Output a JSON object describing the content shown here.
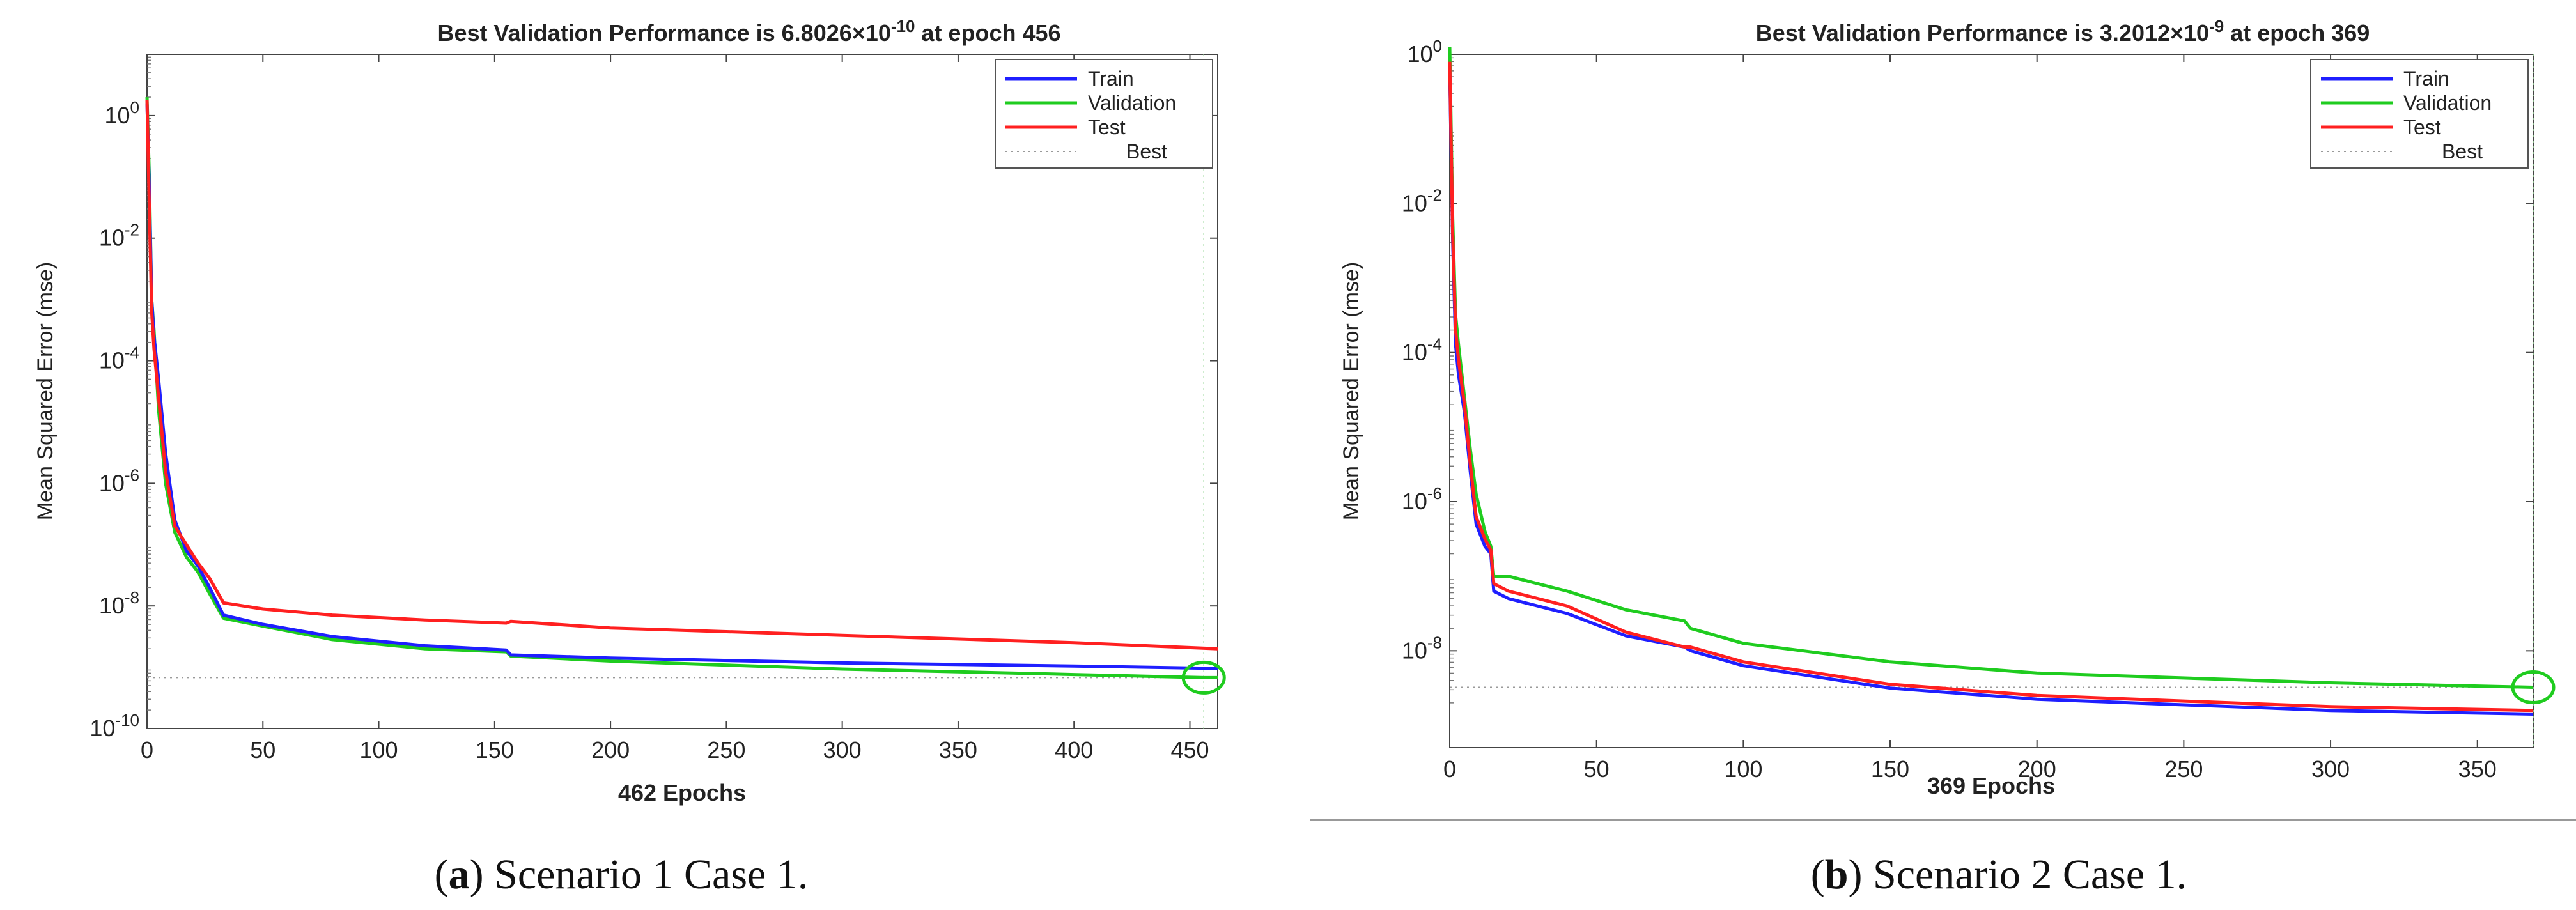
{
  "chart_data": [
    {
      "type": "line",
      "title_prefix": "Best Validation Performance is 6.8026×10",
      "title_exp": "-10",
      "title_suffix": " at epoch 456",
      "xlabel": "462 Epochs",
      "ylabel": "Mean Squared Error  (mse)",
      "yscale": "log",
      "xlim": [
        0,
        462
      ],
      "ylim_exp": [
        -10,
        1
      ],
      "xticks": [
        0,
        50,
        100,
        150,
        200,
        250,
        300,
        350,
        400,
        450
      ],
      "yticks": [
        {
          "base": "10",
          "exp": "0",
          "value": 0
        },
        {
          "base": "10",
          "exp": "-2",
          "value": -2
        },
        {
          "base": "10",
          "exp": "-4",
          "value": -4
        },
        {
          "base": "10",
          "exp": "-6",
          "value": -6
        },
        {
          "base": "10",
          "exp": "-8",
          "value": -8
        },
        {
          "base": "10",
          "exp": "-10",
          "value": -10
        }
      ],
      "series": [
        {
          "name": "Train",
          "color": "#1f1fff",
          "x": [
            0,
            1,
            2,
            3,
            5,
            8,
            12,
            17,
            22,
            27,
            33,
            50,
            80,
            120,
            155,
            157,
            200,
            300,
            400,
            462
          ],
          "log10_mse": [
            0.2,
            -1.2,
            -3.0,
            -3.6,
            -4.3,
            -5.5,
            -6.6,
            -7.1,
            -7.35,
            -7.7,
            -8.15,
            -8.3,
            -8.5,
            -8.65,
            -8.72,
            -8.8,
            -8.85,
            -8.93,
            -8.98,
            -9.02
          ]
        },
        {
          "name": "Validation",
          "color": "#1fcc1f",
          "x": [
            0,
            1,
            2,
            3,
            5,
            8,
            12,
            17,
            22,
            27,
            33,
            50,
            80,
            120,
            155,
            157,
            200,
            300,
            400,
            456,
            462
          ],
          "log10_mse": [
            0.3,
            -1.0,
            -3.0,
            -3.5,
            -4.8,
            -6.0,
            -6.8,
            -7.2,
            -7.45,
            -7.8,
            -8.2,
            -8.33,
            -8.55,
            -8.7,
            -8.75,
            -8.82,
            -8.9,
            -9.03,
            -9.12,
            -9.17,
            -9.17
          ]
        },
        {
          "name": "Test",
          "color": "#ff2020",
          "x": [
            0,
            1,
            2,
            3,
            5,
            8,
            12,
            17,
            22,
            27,
            33,
            50,
            80,
            120,
            155,
            157,
            200,
            300,
            400,
            462
          ],
          "log10_mse": [
            0.25,
            -1.5,
            -3.2,
            -3.8,
            -4.6,
            -5.8,
            -6.7,
            -7.0,
            -7.3,
            -7.55,
            -7.95,
            -8.05,
            -8.15,
            -8.23,
            -8.28,
            -8.25,
            -8.36,
            -8.48,
            -8.6,
            -8.7
          ]
        }
      ],
      "best": {
        "name": "Best",
        "epoch": 456,
        "log10_mse": -9.17,
        "color": "#1fcc1f"
      },
      "legend": "top-right"
    },
    {
      "type": "line",
      "title_prefix": "Best Validation Performance is 3.2012×10",
      "title_exp": "-9",
      "title_suffix": " at epoch 369",
      "xlabel": "369 Epochs",
      "ylabel": "Mean Squared Error  (mse)",
      "yscale": "log",
      "xlim": [
        0,
        369
      ],
      "ylim_exp": [
        -9.3,
        0
      ],
      "xticks": [
        0,
        50,
        100,
        150,
        200,
        250,
        300,
        350
      ],
      "yticks": [
        {
          "base": "10",
          "exp": "0",
          "value": 0
        },
        {
          "base": "10",
          "exp": "-2",
          "value": -2
        },
        {
          "base": "10",
          "exp": "-4",
          "value": -4
        },
        {
          "base": "10",
          "exp": "-6",
          "value": -6
        },
        {
          "base": "10",
          "exp": "-8",
          "value": -8
        }
      ],
      "series": [
        {
          "name": "Train",
          "color": "#1f1fff",
          "x": [
            0,
            1,
            2,
            3,
            5,
            7,
            9,
            12,
            14,
            15,
            20,
            40,
            60,
            80,
            82,
            100,
            150,
            200,
            300,
            369
          ],
          "log10_mse": [
            -0.2,
            -2.5,
            -3.9,
            -4.3,
            -4.8,
            -5.6,
            -6.3,
            -6.6,
            -6.7,
            -7.2,
            -7.3,
            -7.5,
            -7.8,
            -7.95,
            -8.0,
            -8.2,
            -8.5,
            -8.65,
            -8.8,
            -8.85
          ]
        },
        {
          "name": "Validation",
          "color": "#1fcc1f",
          "x": [
            0,
            1,
            2,
            3,
            5,
            7,
            9,
            12,
            14,
            15,
            20,
            40,
            60,
            80,
            82,
            100,
            150,
            200,
            300,
            369
          ],
          "log10_mse": [
            0.1,
            -2.2,
            -3.5,
            -3.9,
            -4.6,
            -5.3,
            -5.9,
            -6.4,
            -6.6,
            -7.0,
            -7.0,
            -7.2,
            -7.45,
            -7.6,
            -7.7,
            -7.9,
            -8.15,
            -8.3,
            -8.43,
            -8.49
          ]
        },
        {
          "name": "Test",
          "color": "#ff2020",
          "x": [
            0,
            1,
            2,
            3,
            5,
            7,
            9,
            12,
            14,
            15,
            20,
            40,
            60,
            80,
            82,
            100,
            150,
            200,
            300,
            369
          ],
          "log10_mse": [
            -0.1,
            -2.4,
            -3.7,
            -4.1,
            -4.7,
            -5.5,
            -6.2,
            -6.5,
            -6.65,
            -7.1,
            -7.2,
            -7.4,
            -7.75,
            -7.95,
            -7.95,
            -8.15,
            -8.45,
            -8.6,
            -8.75,
            -8.8
          ]
        }
      ],
      "best": {
        "name": "Best",
        "epoch": 369,
        "log10_mse": -8.49,
        "color": "#1fcc1f"
      },
      "legend": "top-right"
    }
  ],
  "captions": [
    {
      "label": "a",
      "text": " Scenario 1 Case 1."
    },
    {
      "label": "b",
      "text": " Scenario 2 Case 1."
    }
  ]
}
